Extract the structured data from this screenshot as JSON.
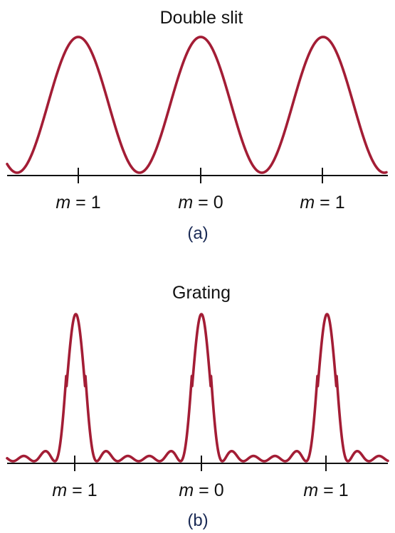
{
  "colors": {
    "curve": "#a31d35",
    "axis": "#111111",
    "text": "#111111",
    "caption": "#1a2a55"
  },
  "panels": [
    {
      "id": "a",
      "title": "Double slit",
      "caption": "(a)",
      "pattern": "double-slit",
      "peak_labels": [
        {
          "var": "m",
          "eq": " = ",
          "val": "1"
        },
        {
          "var": "m",
          "eq": " = ",
          "val": "0"
        },
        {
          "var": "m",
          "eq": " = ",
          "val": "1"
        }
      ]
    },
    {
      "id": "b",
      "title": "Grating",
      "caption": "(b)",
      "pattern": "grating",
      "secondary_maxima_between_peaks": 4,
      "peak_labels": [
        {
          "var": "m",
          "eq": " = ",
          "val": "1"
        },
        {
          "var": "m",
          "eq": " = ",
          "val": "0"
        },
        {
          "var": "m",
          "eq": " = ",
          "val": "1"
        }
      ]
    }
  ]
}
